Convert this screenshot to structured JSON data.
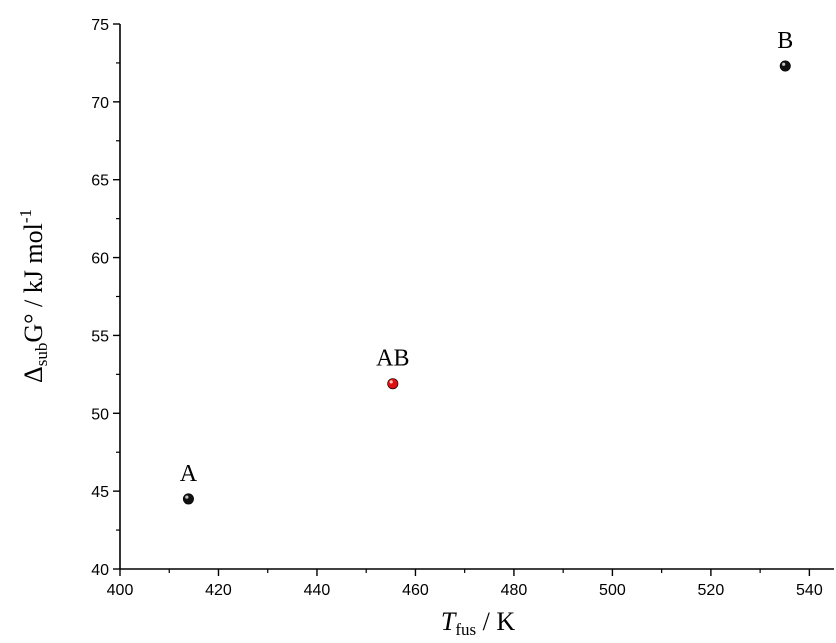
{
  "chart_data": {
    "type": "scatter",
    "xlim": [
      400,
      545
    ],
    "ylim": [
      40,
      75
    ],
    "xticks": [
      400,
      420,
      440,
      460,
      480,
      500,
      520,
      540
    ],
    "yticks": [
      40,
      45,
      50,
      55,
      60,
      65,
      70,
      75
    ],
    "xlabel": {
      "symbol": "T",
      "subscript": "fus",
      "unit": " / K"
    },
    "ylabel": {
      "prefix": "Δ",
      "subscript": "sub",
      "main": "G° / kJ mol",
      "superscript": "-1"
    },
    "grid": false,
    "points": [
      {
        "label": "A",
        "x": 413.9,
        "y": 44.5,
        "color": "#111111"
      },
      {
        "label": "AB",
        "x": 455.4,
        "y": 51.9,
        "color": "#e01010"
      },
      {
        "label": "B",
        "x": 535.1,
        "y": 72.3,
        "color": "#111111"
      }
    ]
  }
}
